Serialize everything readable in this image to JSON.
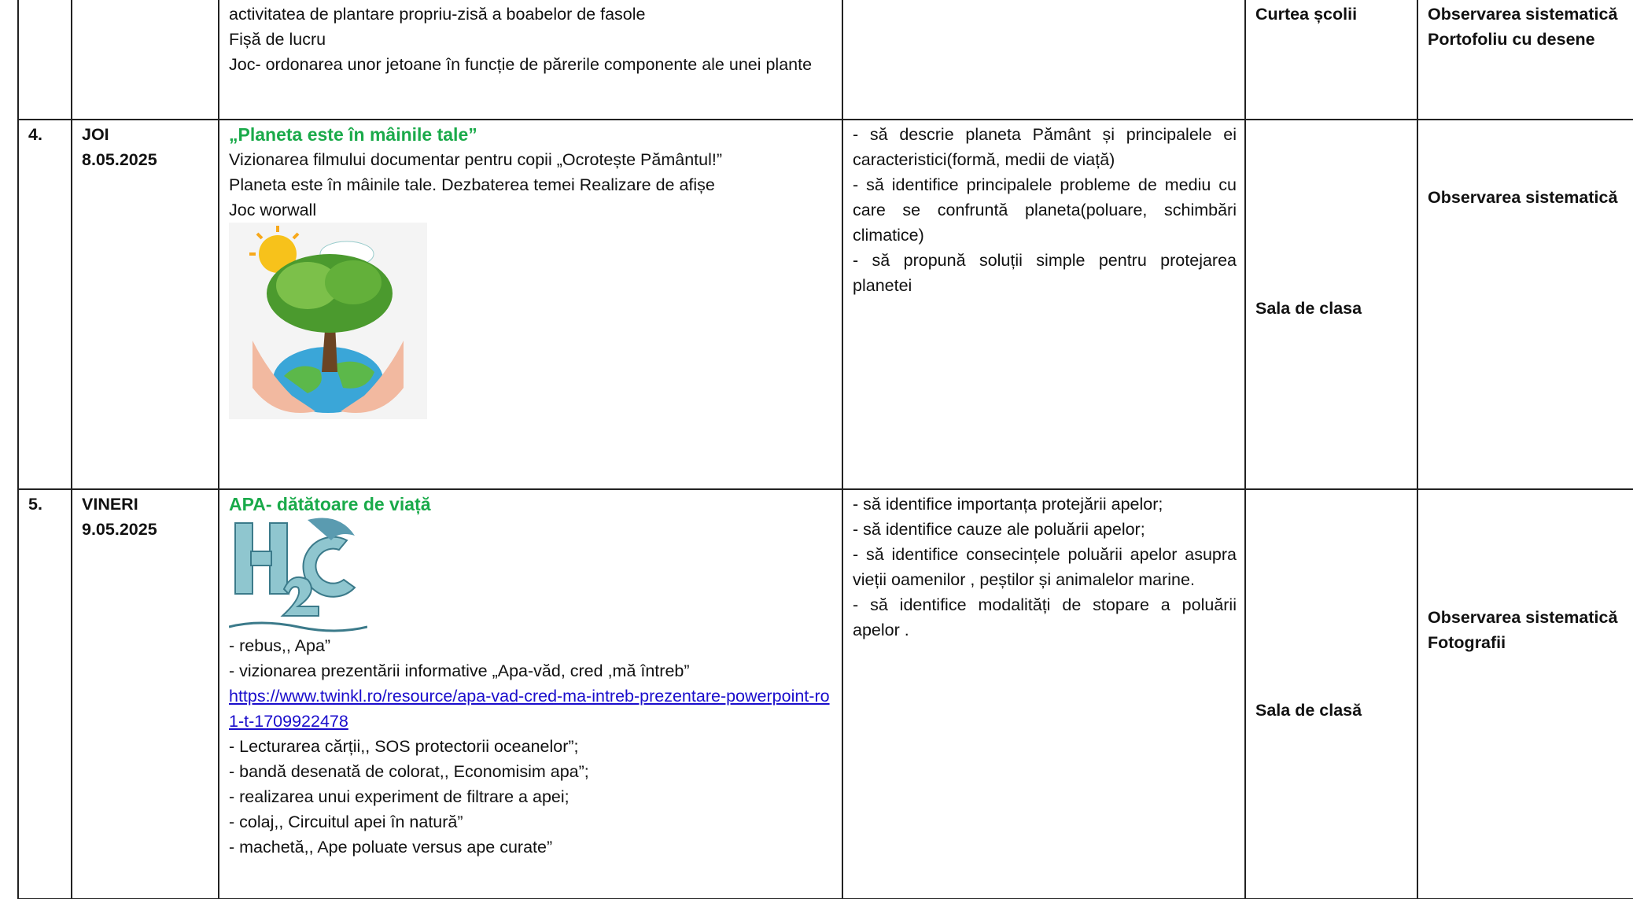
{
  "table": {
    "rows": [
      {
        "activities": {
          "lines": [
            "activitatea de plantare propriu-zisă a boabelor  de fasole",
            " Fișă de lucru",
            " Joc- ordonarea unor jetoane în funcție de părerile componente ale unei plante"
          ]
        },
        "location": "Curtea școlii",
        "evaluation": [
          "Observarea sistematică",
          "Portofoliu cu desene"
        ]
      },
      {
        "number": "4.",
        "day": "JOI",
        "date": "8.05.2025",
        "activities": {
          "title": "„Planeta este în mâinile tale”",
          "lines": [
            "Vizionarea filmului documentar pentru copii „Ocrotește Pământul!”",
            " Planeta este în mâinile tale. Dezbaterea temei Realizare de afișe",
            "Joc worwall"
          ]
        },
        "objectives": [
          "- să descrie planeta Pământ și principalele ei caracteristici(formă, medii de viață)",
          "- să identifice principalele probleme de mediu cu care se confruntă planeta(poluare, schimbări climatice)",
          "- să propună soluții simple pentru protejarea planetei"
        ],
        "location": "Sala de clasa",
        "evaluation": [
          "Observarea sistematică"
        ]
      },
      {
        "number": "5.",
        "day": "VINERI",
        "date": "9.05.2025",
        "activities": {
          "title": "APA- dătătoare de viață",
          "lines": [
            "- rebus,, Apa”",
            "- vizionarea prezentării informative „Apa-văd, cred ,mă întreb”"
          ],
          "link": "https://www.twinkl.ro/resource/apa-vad-cred-ma-intreb-prezentare-powerpoint-ro1-t-1709922478",
          "more_lines": [
            "- Lecturarea cărții,, SOS protectorii oceanelor”;",
            "- bandă desenată de colorat,, Economisim apa”;",
            "- realizarea unui experiment de filtrare a apei;",
            "- colaj,, Circuitul apei în natură”",
            "- machetă,, Ape poluate versus ape curate”"
          ]
        },
        "objectives": [
          "- să identifice importanța protejării apelor;",
          "- să identifice cauze ale poluării apelor;",
          "- să identifice consecințele poluării apelor asupra vieții oamenilor , peștilor și animalelor marine.",
          "- să identifice modalități de stopare a poluării apelor ."
        ],
        "location": "Sala de clasă",
        "evaluation": [
          "Observarea sistematică",
          "Fotografii"
        ]
      }
    ]
  }
}
